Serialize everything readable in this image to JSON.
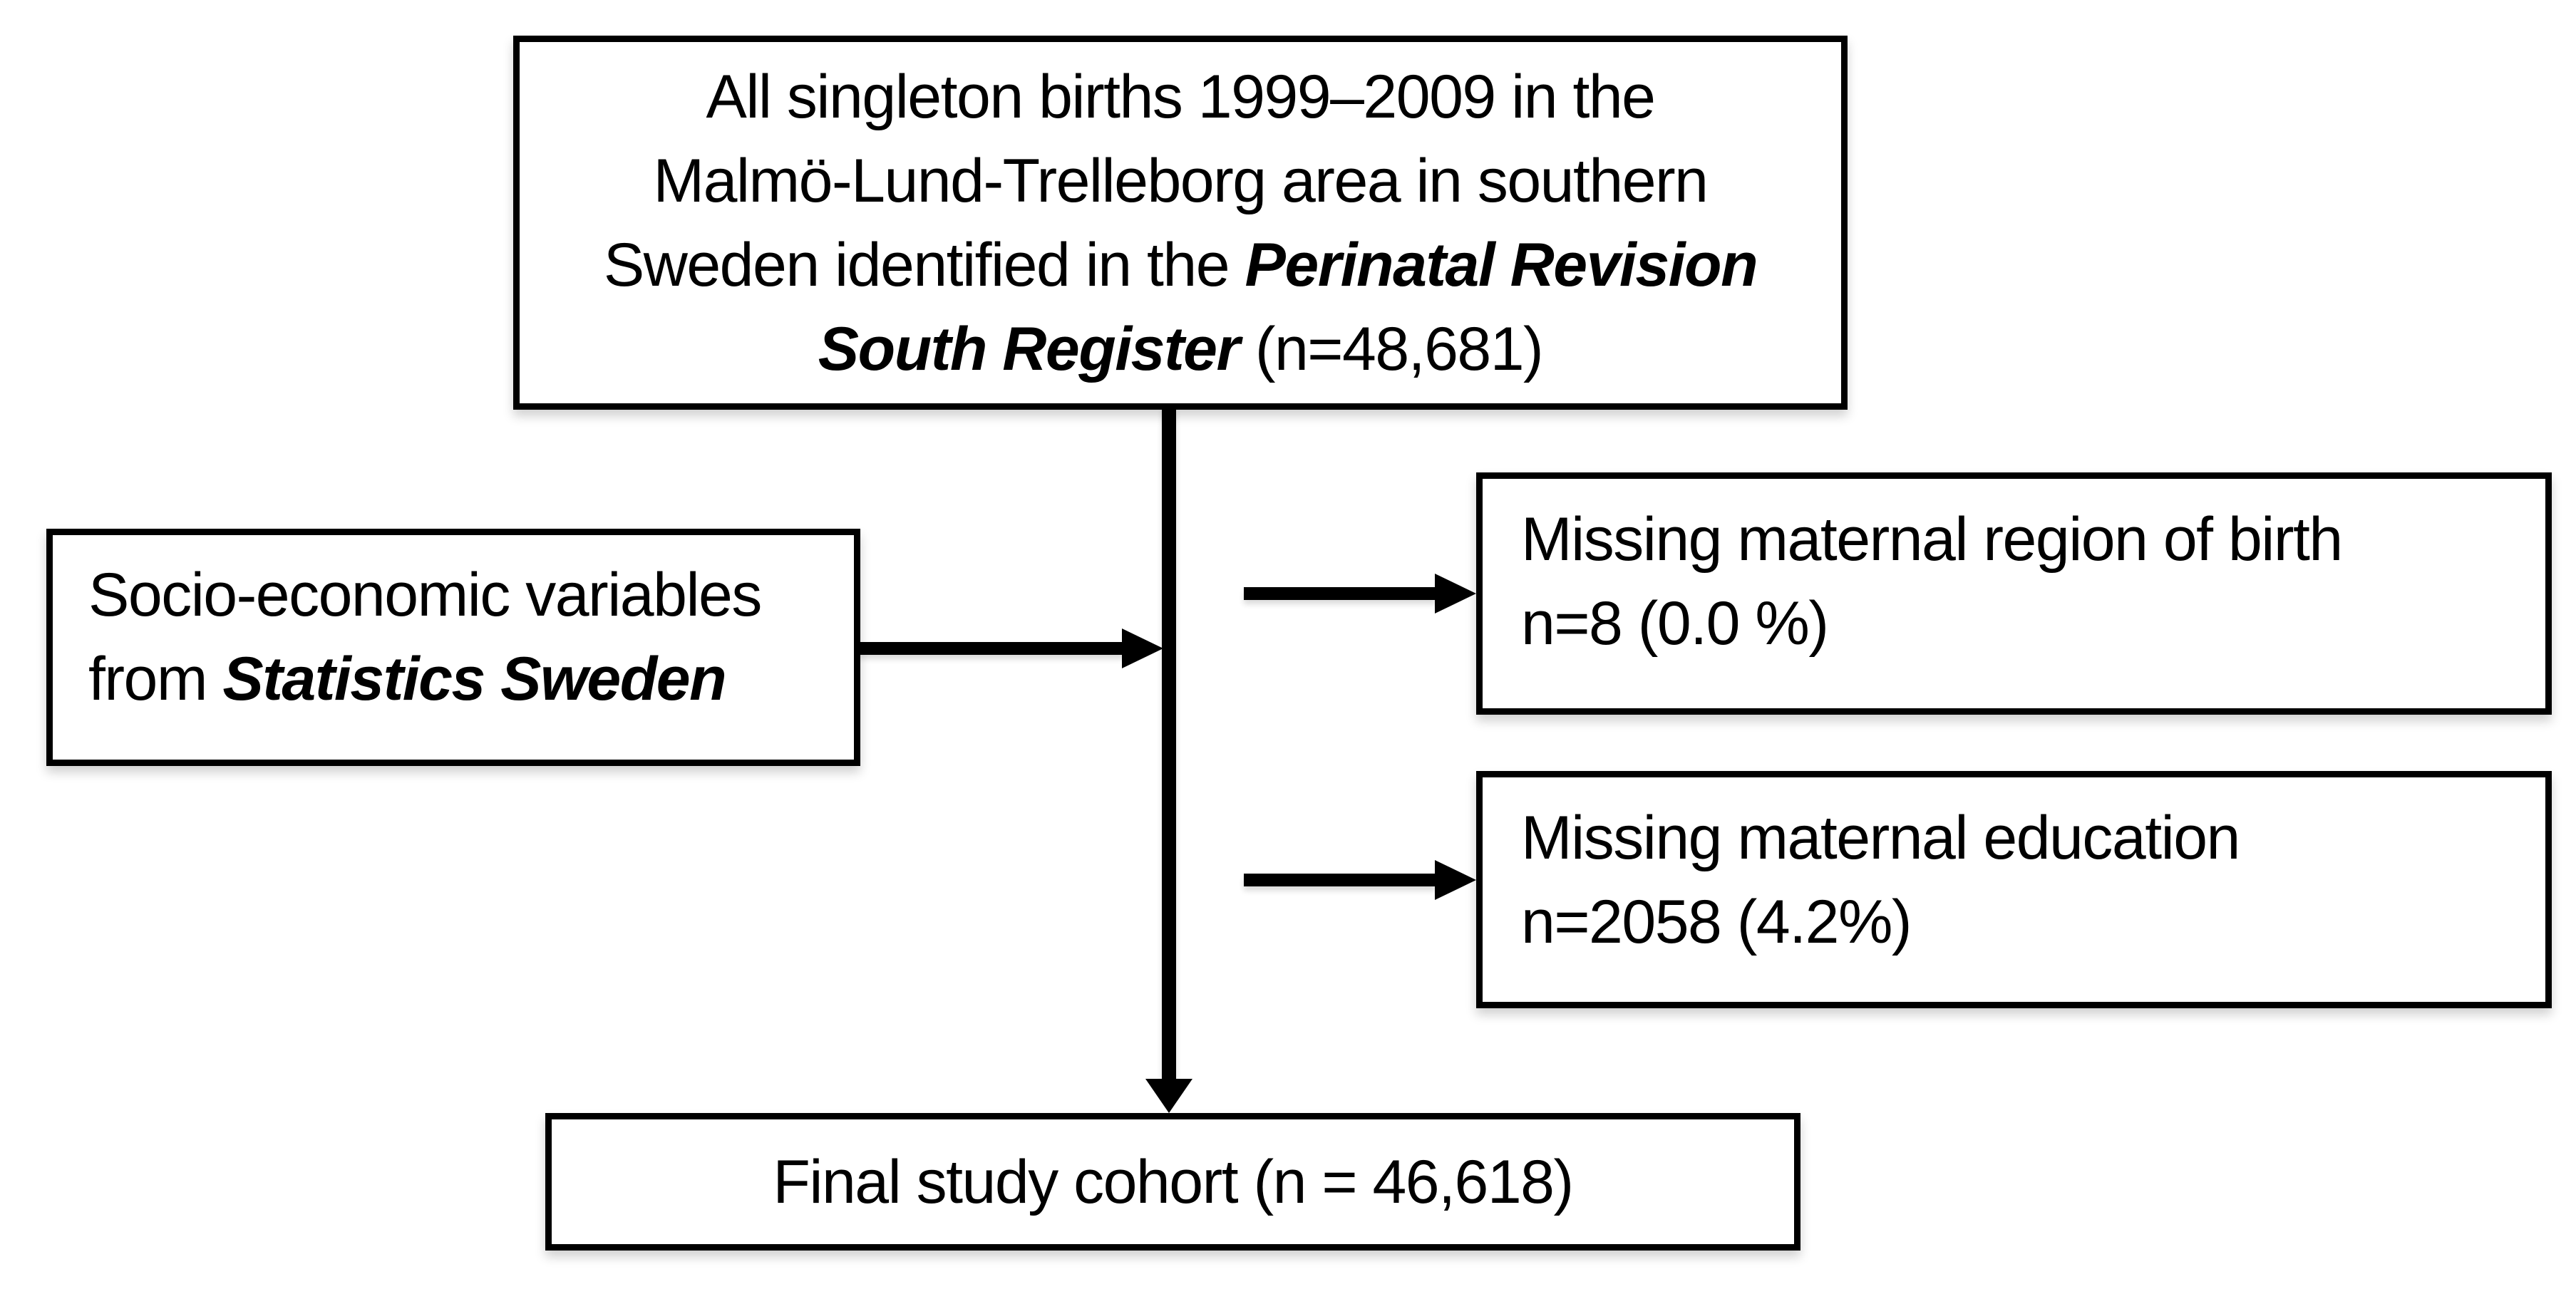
{
  "colors": {
    "background": "#ffffff",
    "box_fill": "#ffffff",
    "box_border": "#000000",
    "text": "#000000",
    "arrow": "#000000"
  },
  "boxes": {
    "source": {
      "line1": "All singleton births 1999–2009 in the",
      "line2": "Malmö-Lund-Trelleborg area in southern",
      "line3_plain": "Sweden identified in the",
      "line3_emphasis": "Perinatal Revision",
      "line4_emphasis": "South Register",
      "line4_plain": "(n=48,681)"
    },
    "socioeconomic": {
      "line1": "Socio-economic variables",
      "line2_plain": "from",
      "line2_emphasis": "Statistics Sweden"
    },
    "exclusion_region": {
      "line1": "Missing maternal region of birth",
      "line2": "n=8 (0.0 %)"
    },
    "exclusion_education": {
      "line1": "Missing maternal education",
      "line2": "n=2058 (4.2%)"
    },
    "final": {
      "line1": "Final study cohort (n = 46,618)"
    }
  }
}
